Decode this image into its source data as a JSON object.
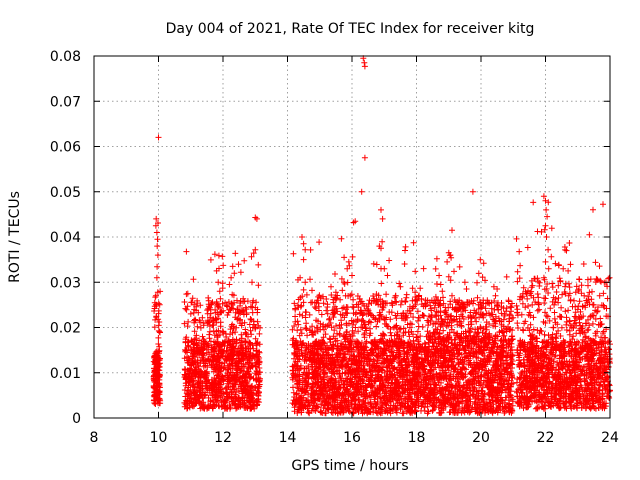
{
  "chart_data": {
    "type": "scatter",
    "title": "Day 004 of 2021, Rate Of TEC Index for receiver kitg",
    "xlabel": "GPS time / hours",
    "ylabel": "ROTI / TECUs",
    "xlim": [
      8,
      24
    ],
    "ylim": [
      0,
      0.08
    ],
    "grid": true,
    "marker": "plus",
    "color": "#ff0000",
    "x_ticks": [
      8,
      10,
      12,
      14,
      16,
      18,
      20,
      22,
      24
    ],
    "x_tick_labels": [
      "8",
      "10",
      "12",
      "14",
      "16",
      "18",
      "20",
      "22",
      "24"
    ],
    "y_ticks": [
      0,
      0.01,
      0.02,
      0.03,
      0.04,
      0.05,
      0.06,
      0.07,
      0.08
    ],
    "y_tick_labels": [
      "0",
      "0.01",
      "0.02",
      "0.03",
      "0.04",
      "0.05",
      "0.06",
      "0.07",
      "0.08"
    ],
    "clusters": [
      {
        "x_range": [
          9.85,
          10.05
        ],
        "count": 200,
        "base_min": 0.003,
        "base_max": 0.015,
        "peak": 0.044
      },
      {
        "x_range": [
          10.8,
          13.15
        ],
        "count": 1200,
        "base_min": 0.002,
        "base_max": 0.017,
        "peak": 0.037
      },
      {
        "x_range": [
          14.15,
          18.3
        ],
        "count": 2200,
        "base_min": 0.001,
        "base_max": 0.017,
        "peak": 0.04
      },
      {
        "x_range": [
          18.3,
          21.0
        ],
        "count": 1500,
        "base_min": 0.001,
        "base_max": 0.018,
        "peak": 0.036
      },
      {
        "x_range": [
          21.1,
          24.0
        ],
        "count": 1500,
        "base_min": 0.002,
        "base_max": 0.017,
        "peak": 0.048
      }
    ],
    "points": [
      {
        "x": 9.92,
        "y": 0.0425
      },
      {
        "x": 9.95,
        "y": 0.041
      },
      {
        "x": 9.97,
        "y": 0.0395
      },
      {
        "x": 9.93,
        "y": 0.044
      },
      {
        "x": 9.96,
        "y": 0.038
      },
      {
        "x": 9.98,
        "y": 0.036
      },
      {
        "x": 9.95,
        "y": 0.031
      },
      {
        "x": 9.92,
        "y": 0.027
      },
      {
        "x": 9.94,
        "y": 0.025
      },
      {
        "x": 10.0,
        "y": 0.062
      },
      {
        "x": 11.0,
        "y": 0.023
      },
      {
        "x": 11.1,
        "y": 0.0215
      },
      {
        "x": 11.4,
        "y": 0.0205
      },
      {
        "x": 11.75,
        "y": 0.0362
      },
      {
        "x": 11.8,
        "y": 0.0325
      },
      {
        "x": 11.85,
        "y": 0.03
      },
      {
        "x": 11.9,
        "y": 0.028
      },
      {
        "x": 12.3,
        "y": 0.0335
      },
      {
        "x": 12.35,
        "y": 0.032
      },
      {
        "x": 12.25,
        "y": 0.031
      },
      {
        "x": 12.2,
        "y": 0.0295
      },
      {
        "x": 12.9,
        "y": 0.03
      },
      {
        "x": 13.0,
        "y": 0.0443
      },
      {
        "x": 13.05,
        "y": 0.044
      },
      {
        "x": 13.0,
        "y": 0.0372
      },
      {
        "x": 14.45,
        "y": 0.04
      },
      {
        "x": 14.5,
        "y": 0.0385
      },
      {
        "x": 14.55,
        "y": 0.0372
      },
      {
        "x": 14.5,
        "y": 0.035
      },
      {
        "x": 14.55,
        "y": 0.03
      },
      {
        "x": 14.5,
        "y": 0.0283
      },
      {
        "x": 14.6,
        "y": 0.0272
      },
      {
        "x": 15.35,
        "y": 0.029
      },
      {
        "x": 15.5,
        "y": 0.0278
      },
      {
        "x": 15.7,
        "y": 0.0282
      },
      {
        "x": 15.75,
        "y": 0.03
      },
      {
        "x": 15.85,
        "y": 0.033
      },
      {
        "x": 15.9,
        "y": 0.0345
      },
      {
        "x": 15.8,
        "y": 0.027
      },
      {
        "x": 16.0,
        "y": 0.0315
      },
      {
        "x": 16.05,
        "y": 0.0432
      },
      {
        "x": 16.1,
        "y": 0.0435
      },
      {
        "x": 16.35,
        "y": 0.0795
      },
      {
        "x": 16.38,
        "y": 0.0785
      },
      {
        "x": 16.4,
        "y": 0.0777
      },
      {
        "x": 16.3,
        "y": 0.05
      },
      {
        "x": 16.4,
        "y": 0.0575
      },
      {
        "x": 16.9,
        "y": 0.046
      },
      {
        "x": 16.95,
        "y": 0.044
      },
      {
        "x": 16.85,
        "y": 0.038
      },
      {
        "x": 16.9,
        "y": 0.0375
      },
      {
        "x": 17.1,
        "y": 0.0315
      },
      {
        "x": 17.15,
        "y": 0.0348
      },
      {
        "x": 17.0,
        "y": 0.033
      },
      {
        "x": 17.5,
        "y": 0.029
      },
      {
        "x": 18.7,
        "y": 0.0315
      },
      {
        "x": 18.75,
        "y": 0.0295
      },
      {
        "x": 18.8,
        "y": 0.028
      },
      {
        "x": 19.0,
        "y": 0.0365
      },
      {
        "x": 19.05,
        "y": 0.036
      },
      {
        "x": 19.1,
        "y": 0.0415
      },
      {
        "x": 18.95,
        "y": 0.0345
      },
      {
        "x": 19.1,
        "y": 0.027
      },
      {
        "x": 19.5,
        "y": 0.03
      },
      {
        "x": 19.55,
        "y": 0.0285
      },
      {
        "x": 19.75,
        "y": 0.05
      },
      {
        "x": 20.0,
        "y": 0.023
      },
      {
        "x": 20.4,
        "y": 0.029
      },
      {
        "x": 20.5,
        "y": 0.0285
      },
      {
        "x": 20.45,
        "y": 0.027
      },
      {
        "x": 21.95,
        "y": 0.049
      },
      {
        "x": 22.0,
        "y": 0.048
      },
      {
        "x": 22.02,
        "y": 0.046
      },
      {
        "x": 22.05,
        "y": 0.0445
      },
      {
        "x": 22.0,
        "y": 0.0425
      },
      {
        "x": 22.03,
        "y": 0.04
      },
      {
        "x": 22.08,
        "y": 0.0372
      },
      {
        "x": 22.0,
        "y": 0.0345
      },
      {
        "x": 22.1,
        "y": 0.033
      },
      {
        "x": 21.95,
        "y": 0.031
      },
      {
        "x": 22.6,
        "y": 0.0378
      },
      {
        "x": 22.65,
        "y": 0.037
      },
      {
        "x": 22.55,
        "y": 0.033
      },
      {
        "x": 22.7,
        "y": 0.0325
      },
      {
        "x": 23.2,
        "y": 0.027
      },
      {
        "x": 23.3,
        "y": 0.0255
      },
      {
        "x": 23.0,
        "y": 0.024
      },
      {
        "x": 23.7,
        "y": 0.022
      }
    ]
  }
}
